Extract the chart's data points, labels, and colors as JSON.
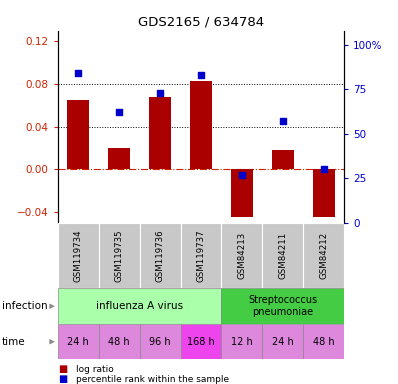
{
  "title": "GDS2165 / 634784",
  "samples": [
    "GSM119734",
    "GSM119735",
    "GSM119736",
    "GSM119737",
    "GSM84213",
    "GSM84211",
    "GSM84212"
  ],
  "log_ratio": [
    0.065,
    0.02,
    0.068,
    0.083,
    -0.045,
    0.018,
    -0.045
  ],
  "percentile_rank": [
    84,
    62,
    73,
    83,
    27,
    57,
    30
  ],
  "ylim_left": [
    -0.05,
    0.13
  ],
  "ylim_right": [
    0,
    108.0
  ],
  "yticks_left": [
    -0.04,
    0.0,
    0.04,
    0.08,
    0.12
  ],
  "yticks_right": [
    0,
    25,
    50,
    75,
    100
  ],
  "hlines": [
    0.08,
    0.04
  ],
  "bar_color": "#AA0000",
  "dot_color": "#0000CC",
  "zero_line_color": "#CC2200",
  "inf_group1_label": "influenza A virus",
  "inf_group2_label": "Streptococcus\npneumoniae",
  "inf_color1": "#AAFFAA",
  "inf_color2": "#44CC44",
  "time_labels": [
    "24 h",
    "48 h",
    "96 h",
    "168 h",
    "12 h",
    "24 h",
    "48 h"
  ],
  "time_color_normal": "#DD88DD",
  "time_color_highlight": "#EE44EE",
  "time_highlight_idx": 3,
  "sample_box_color": "#C8C8C8",
  "arrow_color": "#888888",
  "legend_red_label": "log ratio",
  "legend_blue_label": "percentile rank within the sample"
}
